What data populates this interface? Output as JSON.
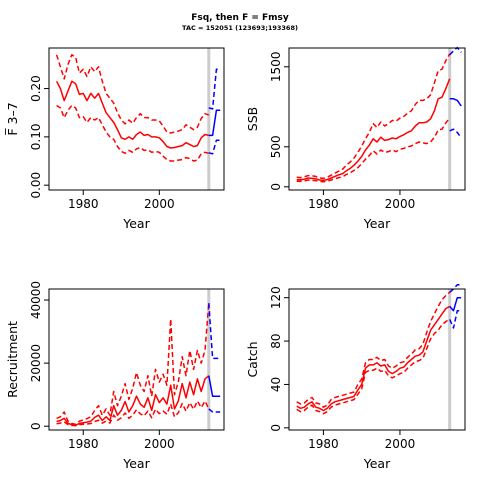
{
  "title": "Fsq, then F = Fmsy",
  "subtitle": "TAC = 152051 (123693;193368)",
  "colors": {
    "history": "#ff0000",
    "projection": "#0000ff",
    "divider": "#cccccc",
    "axis": "#000000"
  },
  "chart_data": [
    {
      "type": "line",
      "panel": "top-left",
      "xlabel": "Year",
      "ylabel": "F̅ 3–7",
      "xlim": [
        1971,
        2017
      ],
      "ylim": [
        -0.01,
        0.284
      ],
      "xticks": [
        1980,
        2000
      ],
      "yticks": [
        0.0,
        0.1,
        0.2
      ],
      "ytick_labels": [
        "0.00",
        "0.10",
        "0.20"
      ],
      "divider_year": 2013,
      "history": {
        "x": [
          1973,
          1974,
          1975,
          1976,
          1977,
          1978,
          1979,
          1980,
          1981,
          1982,
          1983,
          1984,
          1985,
          1986,
          1987,
          1988,
          1989,
          1990,
          1991,
          1992,
          1993,
          1994,
          1995,
          1996,
          1997,
          1998,
          1999,
          2000,
          2001,
          2002,
          2003,
          2004,
          2005,
          2006,
          2007,
          2008,
          2009,
          2010,
          2011,
          2012,
          2013
        ],
        "estimate": [
          0.215,
          0.2,
          0.175,
          0.195,
          0.215,
          0.21,
          0.188,
          0.19,
          0.175,
          0.19,
          0.18,
          0.19,
          0.17,
          0.15,
          0.14,
          0.13,
          0.115,
          0.098,
          0.095,
          0.1,
          0.095,
          0.105,
          0.11,
          0.103,
          0.105,
          0.1,
          0.1,
          0.098,
          0.09,
          0.08,
          0.077,
          0.078,
          0.08,
          0.082,
          0.088,
          0.084,
          0.08,
          0.082,
          0.098,
          0.105,
          0.103
        ],
        "upper": [
          0.27,
          0.245,
          0.22,
          0.25,
          0.27,
          0.265,
          0.232,
          0.24,
          0.225,
          0.245,
          0.235,
          0.245,
          0.215,
          0.19,
          0.18,
          0.17,
          0.15,
          0.135,
          0.127,
          0.135,
          0.128,
          0.14,
          0.148,
          0.14,
          0.14,
          0.135,
          0.135,
          0.133,
          0.122,
          0.11,
          0.108,
          0.11,
          0.112,
          0.115,
          0.125,
          0.12,
          0.115,
          0.12,
          0.138,
          0.148,
          0.145
        ],
        "lower": [
          0.165,
          0.16,
          0.14,
          0.155,
          0.165,
          0.16,
          0.14,
          0.142,
          0.13,
          0.14,
          0.135,
          0.14,
          0.125,
          0.11,
          0.1,
          0.095,
          0.08,
          0.07,
          0.066,
          0.072,
          0.068,
          0.075,
          0.078,
          0.072,
          0.073,
          0.068,
          0.07,
          0.068,
          0.06,
          0.053,
          0.05,
          0.05,
          0.052,
          0.053,
          0.057,
          0.055,
          0.05,
          0.052,
          0.065,
          0.068,
          0.066
        ]
      },
      "projection": {
        "x": [
          2013,
          2014,
          2015,
          2016
        ],
        "estimate": [
          0.103,
          0.103,
          0.155,
          0.155
        ],
        "upper": [
          0.16,
          0.158,
          0.24,
          0.24
        ],
        "lower": [
          0.067,
          0.065,
          0.093,
          0.093
        ]
      }
    },
    {
      "type": "line",
      "panel": "top-right",
      "xlabel": "Year",
      "ylabel": "SSB",
      "xlim": [
        1971,
        2017
      ],
      "ylim": [
        -40,
        1735
      ],
      "xticks": [
        1980,
        2000
      ],
      "yticks": [
        0,
        500,
        1500
      ],
      "ytick_labels": [
        "0",
        "500",
        "1500"
      ],
      "divider_year": 2013,
      "history": {
        "x": [
          1973,
          1974,
          1975,
          1976,
          1977,
          1978,
          1979,
          1980,
          1981,
          1982,
          1983,
          1984,
          1985,
          1986,
          1987,
          1988,
          1989,
          1990,
          1991,
          1992,
          1993,
          1994,
          1995,
          1996,
          1997,
          1998,
          1999,
          2000,
          2001,
          2002,
          2003,
          2004,
          2005,
          2006,
          2007,
          2008,
          2009,
          2010,
          2011,
          2012,
          2013
        ],
        "estimate": [
          90,
          88,
          95,
          110,
          105,
          100,
          85,
          80,
          90,
          110,
          130,
          150,
          165,
          200,
          230,
          270,
          320,
          380,
          460,
          520,
          600,
          560,
          620,
          580,
          590,
          610,
          600,
          630,
          650,
          680,
          700,
          760,
          800,
          800,
          810,
          850,
          950,
          1100,
          1120,
          1230,
          1350
        ],
        "upper": [
          120,
          115,
          125,
          140,
          138,
          130,
          110,
          105,
          120,
          145,
          170,
          195,
          220,
          270,
          310,
          360,
          430,
          510,
          600,
          680,
          790,
          740,
          810,
          760,
          790,
          830,
          820,
          860,
          880,
          920,
          950,
          1030,
          1080,
          1080,
          1100,
          1150,
          1300,
          1450,
          1470,
          1580,
          1660
        ],
        "lower": [
          70,
          68,
          72,
          85,
          80,
          77,
          66,
          62,
          70,
          85,
          100,
          115,
          125,
          155,
          175,
          205,
          240,
          290,
          345,
          390,
          450,
          410,
          460,
          430,
          440,
          460,
          440,
          470,
          480,
          500,
          510,
          540,
          560,
          550,
          540,
          560,
          620,
          710,
          720,
          800,
          860
        ]
      },
      "projection": {
        "x": [
          2013,
          2014,
          2015,
          2016
        ],
        "estimate": [
          1100,
          1100,
          1080,
          1010
        ],
        "upper": [
          1650,
          1700,
          1740,
          1680
        ],
        "lower": [
          700,
          720,
          680,
          610
        ]
      }
    },
    {
      "type": "line",
      "panel": "bottom-left",
      "xlabel": "Year",
      "ylabel": "Recruitment",
      "xlim": [
        1971,
        2017
      ],
      "ylim": [
        -1200,
        43500
      ],
      "xticks": [
        1980,
        2000
      ],
      "yticks": [
        0,
        20000,
        40000
      ],
      "ytick_labels": [
        "0",
        "20000",
        "40000"
      ],
      "divider_year": 2013,
      "history": {
        "x": [
          1973,
          1974,
          1975,
          1976,
          1977,
          1978,
          1979,
          1980,
          1981,
          1982,
          1983,
          1984,
          1985,
          1986,
          1987,
          1988,
          1989,
          1990,
          1991,
          1992,
          1993,
          1994,
          1995,
          1996,
          1997,
          1998,
          1999,
          2000,
          2001,
          2002,
          2003,
          2004,
          2005,
          2006,
          2007,
          2008,
          2009,
          2010,
          2011,
          2012,
          2013
        ],
        "estimate": [
          1500,
          1800,
          2500,
          900,
          500,
          300,
          900,
          1100,
          1300,
          1600,
          2800,
          3500,
          1800,
          3000,
          1800,
          6500,
          3500,
          5000,
          7800,
          4500,
          6500,
          9500,
          7000,
          6000,
          9000,
          5000,
          10000,
          7500,
          9000,
          7000,
          13000,
          5500,
          8000,
          13500,
          9000,
          14000,
          10000,
          15000,
          11000,
          15000,
          16000
        ],
        "upper": [
          2500,
          3000,
          4500,
          1600,
          900,
          600,
          1600,
          2000,
          2400,
          3000,
          5000,
          6500,
          3500,
          5500,
          3500,
          11000,
          6500,
          9500,
          13500,
          8500,
          12000,
          17000,
          13000,
          11000,
          16000,
          9500,
          18000,
          14000,
          16500,
          13000,
          34000,
          10000,
          14000,
          22000,
          16000,
          24000,
          18000,
          24000,
          20000,
          24000,
          39000
        ],
        "lower": [
          800,
          1000,
          1400,
          500,
          250,
          150,
          500,
          600,
          700,
          850,
          1500,
          1900,
          1000,
          1600,
          1000,
          3500,
          1900,
          2700,
          4200,
          2500,
          3500,
          5200,
          3900,
          3300,
          4800,
          2700,
          5400,
          4000,
          4800,
          3800,
          7000,
          3000,
          4300,
          7200,
          4800,
          7500,
          5400,
          8000,
          5900,
          8000,
          5500
        ]
      },
      "projection": {
        "x": [
          2013,
          2014,
          2015,
          2016
        ],
        "estimate": [
          16000,
          9500,
          9500,
          9500
        ],
        "upper": [
          39000,
          21500,
          21500,
          21500
        ],
        "lower": [
          5500,
          4500,
          4500,
          4500
        ]
      }
    },
    {
      "type": "line",
      "panel": "bottom-right",
      "xlabel": "Year",
      "ylabel": "Catch",
      "xlim": [
        1971,
        2017
      ],
      "ylim": [
        -2,
        128
      ],
      "xticks": [
        1980,
        2000
      ],
      "yticks": [
        0,
        40,
        80,
        120
      ],
      "ytick_labels": [
        "0",
        "40",
        "80",
        "120"
      ],
      "divider_year": 2013,
      "history": {
        "x": [
          1973,
          1974,
          1975,
          1976,
          1977,
          1978,
          1979,
          1980,
          1981,
          1982,
          1983,
          1984,
          1985,
          1986,
          1987,
          1988,
          1989,
          1990,
          1991,
          1992,
          1993,
          1994,
          1995,
          1996,
          1997,
          1998,
          1999,
          2000,
          2001,
          2002,
          2003,
          2004,
          2005,
          2006,
          2007,
          2008,
          2009,
          2010,
          2011,
          2012,
          2013
        ],
        "estimate": [
          20,
          18,
          19,
          22,
          24,
          19,
          18,
          16,
          18,
          22,
          24,
          25,
          26,
          27,
          28,
          29,
          35,
          40,
          55,
          58,
          58,
          60,
          57,
          58,
          52,
          50,
          52,
          55,
          56,
          60,
          63,
          66,
          67,
          70,
          80,
          90,
          95,
          100,
          105,
          110,
          112
        ],
        "upper": [
          24,
          22,
          23,
          26,
          28,
          23,
          22,
          19,
          21,
          26,
          28,
          29,
          30,
          31,
          32,
          33,
          40,
          45,
          60,
          63,
          63,
          65,
          62,
          63,
          57,
          55,
          57,
          60,
          61,
          65,
          68,
          72,
          73,
          77,
          88,
          98,
          105,
          112,
          118,
          122,
          125
        ],
        "lower": [
          17,
          15,
          16,
          19,
          21,
          16,
          15,
          13,
          15,
          19,
          21,
          22,
          23,
          24,
          25,
          26,
          31,
          36,
          51,
          53,
          53,
          55,
          52,
          53,
          48,
          46,
          48,
          50,
          51,
          55,
          58,
          61,
          62,
          64,
          73,
          82,
          87,
          90,
          95,
          98,
          100
        ]
      },
      "projection": {
        "x": [
          2013,
          2014,
          2015,
          2016
        ],
        "estimate": [
          112,
          108,
          120,
          120
        ],
        "upper": [
          125,
          128,
          132,
          132
        ],
        "lower": [
          100,
          92,
          108,
          108
        ]
      }
    }
  ]
}
